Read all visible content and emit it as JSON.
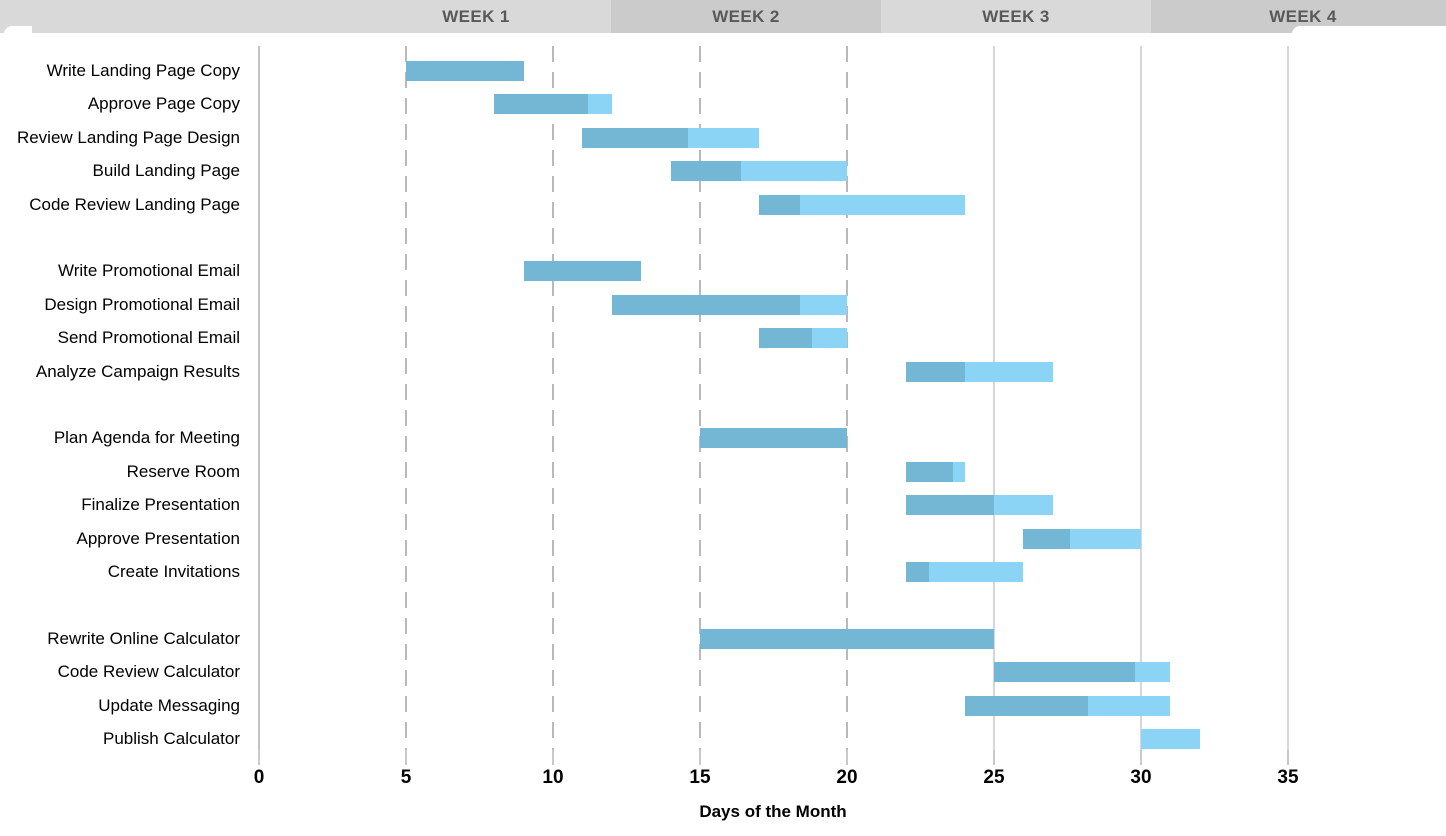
{
  "header": {
    "weeks": [
      "WEEK 1",
      "WEEK 2",
      "WEEK 3",
      "WEEK 4"
    ]
  },
  "chart_data": {
    "type": "bar",
    "subtype": "gantt",
    "title": "",
    "xlabel": "Days of the Month",
    "ylabel": "",
    "xlim": [
      0,
      38.6
    ],
    "x_ticks": [
      0,
      5,
      10,
      15,
      20,
      25,
      30,
      35
    ],
    "grid": {
      "axis_line_at": 0,
      "dashed_lines_at": [
        5,
        10,
        15,
        20
      ],
      "solid_lines_at": [
        25,
        30,
        35
      ]
    },
    "legend": null,
    "bar_colors": {
      "completed": "#74b7d5",
      "remaining": "#8cd4f5"
    },
    "tasks": [
      {
        "label": "Write Landing Page Copy",
        "group": 0,
        "start": 5,
        "duration": 4,
        "completed_until": 9
      },
      {
        "label": "Approve Page Copy",
        "group": 0,
        "start": 8,
        "duration": 4,
        "completed_until": 11.2
      },
      {
        "label": "Review Landing Page Design",
        "group": 0,
        "start": 11,
        "duration": 6,
        "completed_until": 14.6
      },
      {
        "label": "Build Landing Page",
        "group": 0,
        "start": 14,
        "duration": 6,
        "completed_until": 16.4
      },
      {
        "label": "Code Review Landing Page",
        "group": 0,
        "start": 17,
        "duration": 7,
        "completed_until": 18.4
      },
      {
        "label": "Write Promotional Email",
        "group": 1,
        "start": 9,
        "duration": 4,
        "completed_until": 13
      },
      {
        "label": "Design Promotional Email",
        "group": 1,
        "start": 12,
        "duration": 8,
        "completed_until": 18.4
      },
      {
        "label": "Send Promotional Email",
        "group": 1,
        "start": 17,
        "duration": 3,
        "completed_until": 18.8
      },
      {
        "label": "Analyze Campaign Results",
        "group": 1,
        "start": 22,
        "duration": 5,
        "completed_until": 24
      },
      {
        "label": "Plan Agenda for Meeting",
        "group": 2,
        "start": 15,
        "duration": 5,
        "completed_until": 20
      },
      {
        "label": "Reserve Room",
        "group": 2,
        "start": 22,
        "duration": 2,
        "completed_until": 23.6
      },
      {
        "label": "Finalize Presentation",
        "group": 2,
        "start": 22,
        "duration": 5,
        "completed_until": 25
      },
      {
        "label": "Approve Presentation",
        "group": 2,
        "start": 26,
        "duration": 4,
        "completed_until": 27.6
      },
      {
        "label": "Create Invitations",
        "group": 2,
        "start": 22,
        "duration": 4,
        "completed_until": 22.8
      },
      {
        "label": "Rewrite Online Calculator",
        "group": 3,
        "start": 15,
        "duration": 10,
        "completed_until": 25
      },
      {
        "label": "Code Review Calculator",
        "group": 3,
        "start": 25,
        "duration": 6,
        "completed_until": 29.8
      },
      {
        "label": "Update Messaging",
        "group": 3,
        "start": 24,
        "duration": 7,
        "completed_until": 28.2
      },
      {
        "label": "Publish Calculator",
        "group": 3,
        "start": 30,
        "duration": 2,
        "completed_until": 30
      }
    ]
  }
}
